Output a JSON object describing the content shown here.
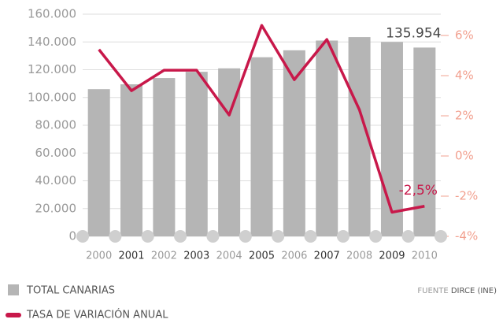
{
  "chart_data": {
    "type": "bar_line",
    "categories": [
      "2000",
      "2001",
      "2002",
      "2003",
      "2004",
      "2005",
      "2006",
      "2007",
      "2008",
      "2009",
      "2010"
    ],
    "series": [
      {
        "name": "TOTAL CANARIAS",
        "type": "bar",
        "color": "#b5b5b5",
        "values": [
          106000,
          109500,
          114000,
          118500,
          121000,
          129000,
          134000,
          141000,
          143500,
          140000,
          135954
        ],
        "value_labels": [
          null,
          null,
          null,
          null,
          null,
          null,
          null,
          null,
          null,
          null,
          "135.954"
        ]
      },
      {
        "name": "TASA DE VARIACIÓN ANUAL",
        "type": "line",
        "axis": "y2",
        "color": "#c8184a",
        "values": [
          5.3,
          3.25,
          4.27,
          4.27,
          2.04,
          6.5,
          3.8,
          5.8,
          2.3,
          -2.8,
          -2.5
        ],
        "value_labels": [
          null,
          null,
          null,
          null,
          null,
          null,
          null,
          null,
          null,
          null,
          "-2,5%"
        ]
      }
    ],
    "ylim": [
      0,
      160000
    ],
    "yticks": [
      0,
      {
        "value": 20000,
        "label": "20.000"
      },
      {
        "value": 40000,
        "label": "40.000"
      },
      {
        "value": 60000,
        "label": "60.000"
      },
      {
        "value": 80000,
        "label": "80.000"
      },
      {
        "value": 100000,
        "label": "100.000"
      },
      {
        "value": 120000,
        "label": "120.000"
      },
      {
        "value": 140000,
        "label": "140.000"
      },
      {
        "value": 160000,
        "label": "160.000"
      }
    ],
    "y2lim": [
      -4,
      7.06
    ],
    "y2ticks": [
      {
        "value": -4,
        "label": "-4%"
      },
      {
        "value": -2,
        "label": "-2%"
      },
      {
        "value": 0,
        "label": "0%"
      },
      {
        "value": 2,
        "label": "2%"
      },
      {
        "value": 4,
        "label": "4%"
      },
      {
        "value": 6,
        "label": "6%"
      }
    ],
    "grid": true,
    "source_label": "FUENTE",
    "source": "DIRCE (INE)"
  }
}
